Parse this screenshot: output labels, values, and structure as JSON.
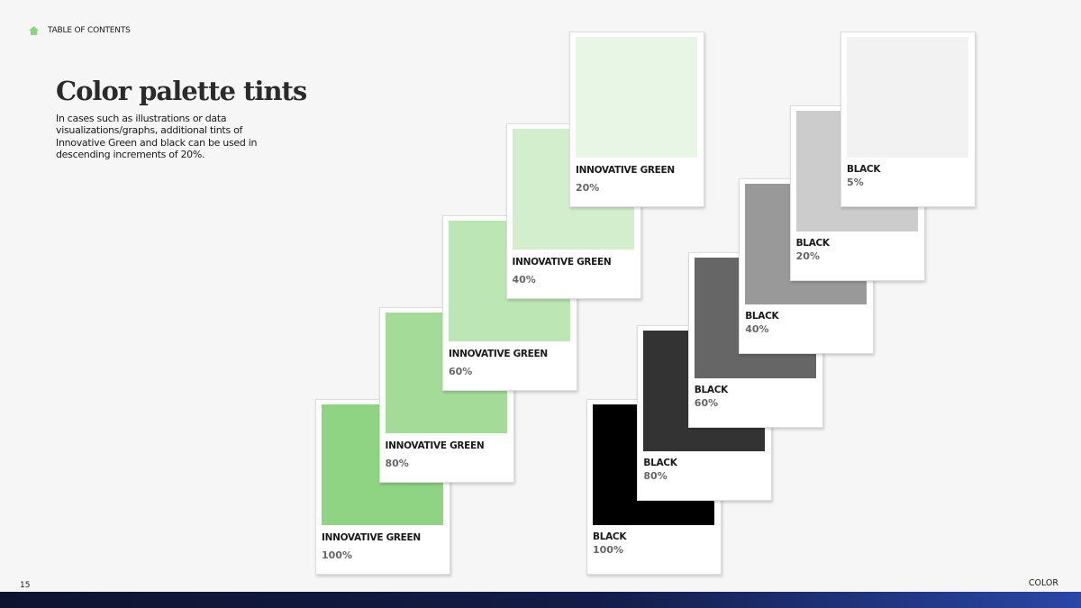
{
  "header": {
    "nav_label": "TABLE OF CONTENTS"
  },
  "title": "Color palette tints",
  "body": "In cases such as illustrations or data visualizations/graphs, additional tints of Innovative Green and black can be used in descending increments of 20%.",
  "green_swatches": [
    {
      "name": "INNOVATIVE GREEN",
      "tint": "100%",
      "color": "#8fd483"
    },
    {
      "name": "INNOVATIVE GREEN",
      "tint": "80%",
      "color": "#a5db99"
    },
    {
      "name": "INNOVATIVE GREEN",
      "tint": "60%",
      "color": "#bde6b5"
    },
    {
      "name": "INNOVATIVE GREEN",
      "tint": "40%",
      "color": "#d3eecd"
    },
    {
      "name": "INNOVATIVE GREEN",
      "tint": "20%",
      "color": "#e8f6e6"
    }
  ],
  "black_swatches": [
    {
      "name": "BLACK",
      "tint": "100%",
      "color": "#000000"
    },
    {
      "name": "BLACK",
      "tint": "80%",
      "color": "#333333"
    },
    {
      "name": "BLACK",
      "tint": "60%",
      "color": "#666666"
    },
    {
      "name": "BLACK",
      "tint": "40%",
      "color": "#999999"
    },
    {
      "name": "BLACK",
      "tint": "20%",
      "color": "#cccccc"
    },
    {
      "name": "BLACK",
      "tint": "5%",
      "color": "#f2f2f2"
    }
  ],
  "footer": {
    "page_number": "15",
    "section": "COLOR"
  }
}
